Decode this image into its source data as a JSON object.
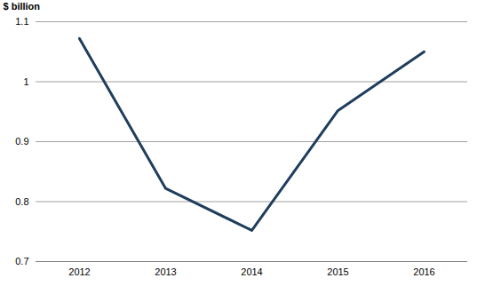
{
  "chart_data": {
    "type": "line",
    "y_label": "$ billion",
    "categories": [
      "2012",
      "2013",
      "2014",
      "2015",
      "2016"
    ],
    "values": [
      1.072,
      0.822,
      0.752,
      0.952,
      1.05
    ],
    "color": "#1f3d5c",
    "ylim": [
      0.7,
      1.1
    ],
    "yticks": [
      0.7,
      0.8,
      0.9,
      1,
      1.1
    ],
    "grid": true
  }
}
